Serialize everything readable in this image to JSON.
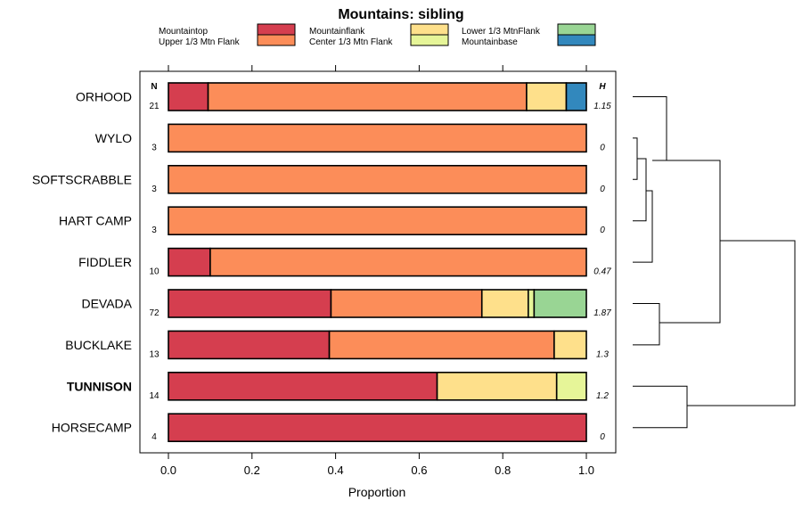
{
  "chart_data": {
    "type": "bar",
    "stacked": true,
    "orientation": "horizontal",
    "title": "Mountains: sibling",
    "xlabel": "Proportion",
    "ylabel": "",
    "xlim": [
      0,
      1
    ],
    "xticks": [
      0.0,
      0.2,
      0.4,
      0.6,
      0.8,
      1.0
    ],
    "xtick_labels": [
      "0.0",
      "0.2",
      "0.4",
      "0.6",
      "0.8",
      "1.0"
    ],
    "n_header": "N",
    "h_header": "H",
    "legend_placement": "top",
    "series": [
      {
        "name": "Mountaintop",
        "color": "#d53e4f"
      },
      {
        "name": "Upper 1/3 Mtn Flank",
        "color": "#fc8d59"
      },
      {
        "name": "Mountainflank",
        "color": "#fee08b"
      },
      {
        "name": "Center 1/3 Mtn Flank",
        "color": "#e6f598"
      },
      {
        "name": "Lower 1/3 MtnFlank",
        "color": "#99d594"
      },
      {
        "name": "Mountainbase",
        "color": "#3288bd"
      }
    ],
    "categories": [
      {
        "name": "ORHOOD",
        "n": "21",
        "h": "1.15",
        "bold": false,
        "values": [
          0.095,
          0.762,
          0.095,
          0.0,
          0.0,
          0.048
        ]
      },
      {
        "name": "WYLO",
        "n": "3",
        "h": "0",
        "bold": false,
        "values": [
          0,
          1,
          0,
          0,
          0,
          0
        ]
      },
      {
        "name": "SOFTSCRABBLE",
        "n": "3",
        "h": "0",
        "bold": false,
        "values": [
          0,
          1,
          0,
          0,
          0,
          0
        ]
      },
      {
        "name": "HART CAMP",
        "n": "3",
        "h": "0",
        "bold": false,
        "values": [
          0,
          1,
          0,
          0,
          0,
          0
        ]
      },
      {
        "name": "FIDDLER",
        "n": "10",
        "h": "0.47",
        "bold": false,
        "values": [
          0.1,
          0.9,
          0,
          0,
          0,
          0
        ]
      },
      {
        "name": "DEVADA",
        "n": "72",
        "h": "1.87",
        "bold": false,
        "values": [
          0.389,
          0.361,
          0.111,
          0.014,
          0.125,
          0.0
        ]
      },
      {
        "name": "BUCKLAKE",
        "n": "13",
        "h": "1.3",
        "bold": false,
        "values": [
          0.385,
          0.538,
          0.077,
          0,
          0,
          0
        ]
      },
      {
        "name": "TUNNISON",
        "n": "14",
        "h": "1.2",
        "bold": true,
        "values": [
          0.643,
          0.0,
          0.286,
          0.071,
          0,
          0
        ]
      },
      {
        "name": "HORSECAMP",
        "n": "4",
        "h": "0",
        "bold": false,
        "values": [
          1,
          0,
          0,
          0,
          0,
          0
        ]
      }
    ],
    "dendrogram": {
      "description": "hierarchical clustering of sites shown to the right of the plot",
      "merges": [
        {
          "left": "WYLO",
          "right": "SOFTSCRABBLE",
          "height": 0.0
        },
        {
          "left": "WYLO+SOFTSCRABBLE",
          "right": "HART CAMP",
          "height": 0.05
        },
        {
          "left": "HART CAMP group",
          "right": "FIDDLER",
          "height": 0.1
        },
        {
          "left": "ORHOOD",
          "right": "WYLO/SOFT/HART/FIDDLER",
          "height": 0.15
        },
        {
          "left": "DEVADA",
          "right": "BUCKLAKE",
          "height": 0.15
        },
        {
          "left": "ORHOOD group",
          "right": "DEVADA group",
          "height": 0.5
        },
        {
          "left": "TUNNISON",
          "right": "HORSECAMP",
          "height": 0.3
        },
        {
          "left": "upper cluster",
          "right": "TUNNISON group",
          "height": 0.92
        }
      ]
    }
  }
}
